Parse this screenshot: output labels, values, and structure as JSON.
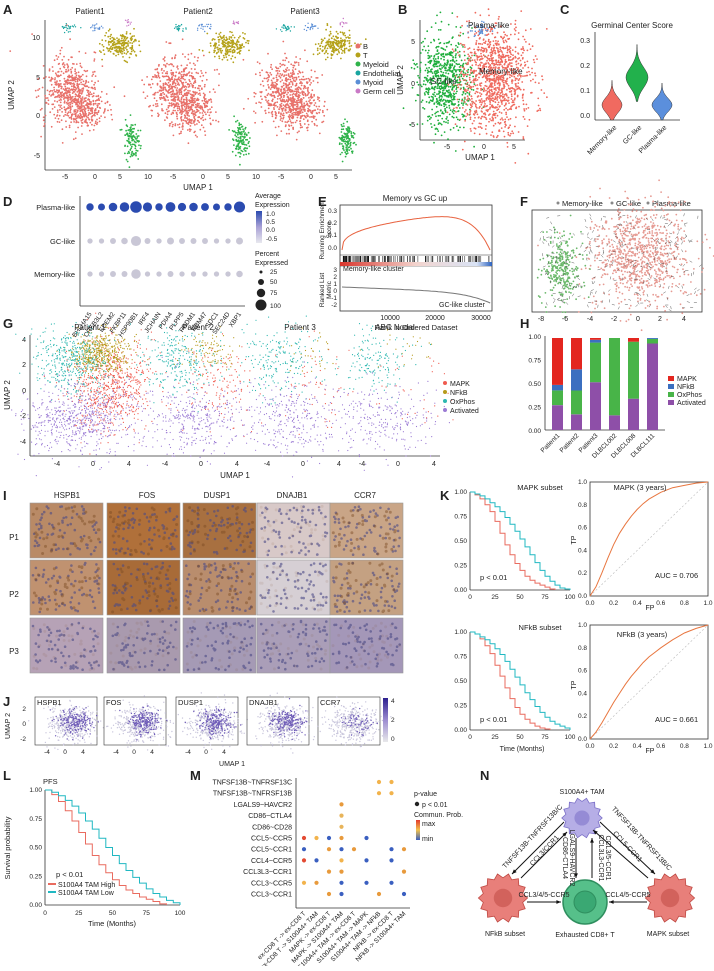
{
  "panels": {
    "A": {
      "label": "A",
      "titles": [
        "Patient1",
        "Patient2",
        "Patient3"
      ],
      "xlabel": "UMAP 1",
      "ylabel": "UMAP 2",
      "xticks": [
        "-5",
        "0",
        "5",
        "10"
      ],
      "yticks": [
        "10",
        "5",
        "0",
        "-5"
      ],
      "legend": [
        "B",
        "T",
        "Myeloid",
        "Endothelial",
        "Myoid",
        "Germ cell"
      ],
      "colors": [
        "#e8716a",
        "#b5a21a",
        "#2fb34a",
        "#19a5a0",
        "#5a8ed6",
        "#c979c6"
      ]
    },
    "B": {
      "label": "B",
      "xlabel": "UMAP 1",
      "ylabel": "UMAP 2",
      "xticks": [
        "-5",
        "0",
        "5"
      ],
      "yticks": [
        "5",
        "0",
        "-5"
      ],
      "clusters": [
        "Plasma-like",
        "GC-like",
        "Memory-like"
      ]
    },
    "C": {
      "label": "C",
      "title": "Germinal Center Score",
      "yticks": [
        "0.3",
        "0.2",
        "0.1",
        "0.0"
      ],
      "categories": [
        "Memory-like",
        "GC-like",
        "Plasma-like"
      ],
      "colors": [
        "#f06a60",
        "#22b14c",
        "#5b8fdc"
      ]
    },
    "D": {
      "label": "D",
      "rows": [
        "Plasma-like",
        "GC-like",
        "Memory-like"
      ],
      "genes": [
        "BHLHA15",
        "CREB3L2",
        "EDEM2",
        "FKBP11",
        "HSP90B1",
        "IRF4",
        "JCHAIN",
        "PDIA4",
        "PLPP5",
        "PRDM1",
        "RBM47",
        "SDC1",
        "SEC24D",
        "XBP1"
      ],
      "legend_title_avg": "Average\nExpression",
      "avg_ticks": [
        "1.0",
        "0.5",
        "0.0",
        "-0.5"
      ],
      "legend_title_pct": "Percent\nExpressed",
      "pct_ticks": [
        "25",
        "50",
        "75",
        "100"
      ]
    },
    "E": {
      "label": "E",
      "title": "Memory vs GC up",
      "ylabel_top": "Running Enrichment\nScore",
      "ylabel_bottom": "Ranked List\nMetric",
      "xlabel": "Rank in Ordered Dataset",
      "xticks": [
        "10000",
        "20000",
        "30000"
      ],
      "yticks_top": [
        "0.3",
        "0.2",
        "0.1",
        "0.0"
      ],
      "yticks_bottom": [
        "3",
        "2",
        "1",
        "0",
        "-1",
        "-2"
      ],
      "annot_left": "Memory-like cluster",
      "annot_right": "GC-like cluster"
    },
    "F": {
      "label": "F",
      "legend": [
        "Memory-like",
        "GC-like",
        "Plasma-like"
      ],
      "xticks": [
        "-8",
        "-6",
        "-4",
        "-2",
        "0",
        "2",
        "4"
      ]
    },
    "G": {
      "label": "G",
      "titles": [
        "Patient 1",
        "Patient 2",
        "Patient 3",
        "ABC Nodal"
      ],
      "xlabel": "UMAP 1",
      "ylabel": "UMAP 2",
      "xticks": [
        "-4",
        "0",
        "4"
      ],
      "yticks": [
        "4",
        "2",
        "0",
        "-2",
        "-4"
      ],
      "legend": [
        "MAPK",
        "NFkB",
        "OxPhos",
        "Activated"
      ],
      "colors": [
        "#ef5b4f",
        "#b79a1a",
        "#2cb7b0",
        "#9b7bd4"
      ]
    },
    "H": {
      "label": "H",
      "yticks": [
        "1.00",
        "0.75",
        "0.50",
        "0.25",
        "0.00"
      ],
      "legend": [
        "MAPK",
        "NFkB",
        "OxPhos",
        "Activated"
      ],
      "colors": [
        "#e3261f",
        "#3b6fc0",
        "#48b448",
        "#8e4fa8"
      ]
    },
    "I": {
      "label": "I",
      "genes": [
        "HSPB1",
        "FOS",
        "DUSP1",
        "DNAJB1",
        "CCR7"
      ],
      "rows": [
        "P1",
        "P2",
        "P3"
      ]
    },
    "J": {
      "label": "J",
      "genes": [
        "HSPB1",
        "FOS",
        "DUSP1",
        "DNAJB1",
        "CCR7"
      ],
      "xlabel": "UMAP 1",
      "ylabel": "UMAP 2",
      "xticks": [
        "-4",
        "0",
        "4"
      ],
      "yticks": [
        "2",
        "0",
        "-2"
      ],
      "colorbar_ticks": [
        "4",
        "2",
        "0"
      ]
    },
    "K": {
      "label": "K",
      "top_title": "MAPK subset",
      "bottom_title": "NFkB subset",
      "pval": "p < 0.01",
      "roc_top_title": "MAPK (3 years)",
      "roc_bottom_title": "NFkB (3 years)",
      "auc_top": "AUC = 0.706",
      "auc_bottom": "AUC = 0.661",
      "km_yticks": [
        "1.00",
        "0.75",
        "0.50",
        "0.25",
        "0.00"
      ],
      "km_xticks": [
        "0",
        "25",
        "50",
        "75",
        "100"
      ],
      "roc_ticks": [
        "0.0",
        "0.2",
        "0.4",
        "0.6",
        "0.8",
        "1.0"
      ],
      "xlabel_km": "Time (Months)",
      "xlabel_roc": "FP",
      "ylabel_roc": "TP"
    },
    "L": {
      "label": "L",
      "title": "PFS",
      "ylabel": "Survival probability",
      "xlabel": "Time (Months)",
      "pval": "p < 0.01",
      "yticks": [
        "1.00",
        "0.75",
        "0.50",
        "0.25",
        "0.00"
      ],
      "xticks": [
        "0",
        "25",
        "50",
        "75",
        "100"
      ],
      "legend": [
        "S100A4 TAM High",
        "S100A4 TAM Low"
      ],
      "colors": [
        "#e96b5f",
        "#20b8c2"
      ]
    },
    "M": {
      "label": "M",
      "pairs": [
        "TNFSF13B~TNFRSF13C",
        "TNFSF13B~TNFRSF13B",
        "LGALS9~HAVCR2",
        "CD86~CTLA4",
        "CD86~CD28",
        "CCL5~CCR5",
        "CCL5~CCR1",
        "CCL4~CCR5",
        "CCL3L3~CCR1",
        "CCL3~CCR5",
        "CCL3~CCR1"
      ],
      "sources": [
        "ex-CD8 T -> ex-CD8 T",
        "ex-CD8 T -> S100A4+ TAM",
        "MAPK -> ex-CD8 T",
        "MAPK -> S100A4+ TAM",
        "S100A4+ TAM -> ex-CD8 T",
        "S100A4+ TAM -> MAPK",
        "S100A4+ TAM -> NFkB",
        "NFkB -> ex-CD8 T",
        "NFkB -> S100A4+ TAM"
      ],
      "legend_pvalue": "p-value",
      "legend_p": "p < 0.01",
      "legend_prob": "Commun. Prob.",
      "legend_max": "max",
      "legend_min": "min"
    },
    "N": {
      "label": "N",
      "nodes": {
        "tam": "S100A4+ TAM",
        "nfkb": "NFkB subset",
        "cd8": "Exhausted CD8+ T",
        "mapk": "MAPK subset"
      },
      "edges": {
        "left_upper": "TNFSF13B-TNFRSF13B/C",
        "left_lower": "CCL3/CCR1",
        "mid_1": "CD86-CTLA4",
        "mid_2": "LGALS9-HAVCR2",
        "mid_3": "CCL3L3-CCR1",
        "mid_4": "CCL3/5-CCR1",
        "right_upper": "TNFSF13B-TNFRSF13B/C",
        "right_lower": "CCL5-CCR1",
        "bottom_left": "CCL3/4/5-CCR5",
        "bottom_right": "CCL4/5-CCR5"
      }
    }
  },
  "chart_data": [
    {
      "type": "violin",
      "panel": "C",
      "title": "Germinal Center Score",
      "categories": [
        "Memory-like",
        "GC-like",
        "Plasma-like"
      ],
      "values": [
        0.06,
        0.17,
        0.06
      ],
      "ylim": [
        0.0,
        0.35
      ]
    },
    {
      "type": "bar",
      "panel": "H",
      "stacked": true,
      "categories": [
        "Patient1",
        "Patient2",
        "Patient3",
        "DLBCL002",
        "DLBCL008",
        "DLBCL111"
      ],
      "series": [
        {
          "name": "Activated",
          "values": [
            0.27,
            0.17,
            0.52,
            0.16,
            0.34,
            0.94
          ]
        },
        {
          "name": "OxPhos",
          "values": [
            0.16,
            0.26,
            0.43,
            0.84,
            0.62,
            0.05
          ]
        },
        {
          "name": "NFkB",
          "values": [
            0.06,
            0.23,
            0.03,
            0.0,
            0.0,
            0.01
          ]
        },
        {
          "name": "MAPK",
          "values": [
            0.51,
            0.34,
            0.02,
            0.0,
            0.04,
            0.0
          ]
        }
      ],
      "ylim": [
        0,
        1.0
      ]
    },
    {
      "type": "dotplot",
      "panel": "D",
      "genes": [
        "BHLHA15",
        "CREB3L2",
        "EDEM2",
        "FKBP11",
        "HSP90B1",
        "IRF4",
        "JCHAIN",
        "PDIA4",
        "PLPP5",
        "PRDM1",
        "RBM47",
        "SDC1",
        "SEC24D",
        "XBP1"
      ],
      "rows": [
        "Plasma-like",
        "GC-like",
        "Memory-like"
      ],
      "pct": [
        [
          30,
          25,
          45,
          60,
          100,
          55,
          30,
          65,
          40,
          45,
          35,
          25,
          30,
          90
        ],
        [
          10,
          10,
          15,
          20,
          70,
          15,
          10,
          25,
          15,
          15,
          15,
          10,
          10,
          25
        ],
        [
          10,
          10,
          15,
          15,
          60,
          10,
          10,
          15,
          10,
          10,
          10,
          10,
          10,
          20
        ]
      ],
      "avg": [
        [
          1.0,
          1.0,
          1.0,
          1.0,
          1.0,
          1.0,
          1.0,
          1.0,
          1.0,
          1.0,
          1.0,
          1.0,
          1.0,
          1.0
        ],
        [
          -0.5,
          -0.5,
          -0.4,
          -0.5,
          -0.3,
          -0.5,
          -0.6,
          -0.4,
          -0.5,
          -0.5,
          -0.4,
          -0.6,
          -0.5,
          -0.5
        ],
        [
          -0.5,
          -0.5,
          -0.5,
          -0.5,
          -0.4,
          -0.6,
          -0.6,
          -0.5,
          -0.5,
          -0.5,
          -0.5,
          -0.6,
          -0.5,
          -0.5
        ]
      ]
    },
    {
      "type": "line",
      "panel": "K-top",
      "title": "MAPK subset",
      "xlabel": "",
      "series": [
        {
          "x": [
            0,
            5,
            10,
            15,
            20,
            25,
            30,
            35,
            40,
            45,
            50,
            55,
            60,
            65,
            70,
            75,
            80,
            85
          ],
          "y": [
            1.0,
            0.97,
            0.93,
            0.87,
            0.8,
            0.7,
            0.58,
            0.46,
            0.36,
            0.27,
            0.2,
            0.14,
            0.1,
            0.07,
            0.05,
            0.03,
            0.01,
            0.0
          ]
        },
        {
          "x": [
            0,
            5,
            10,
            15,
            20,
            25,
            30,
            35,
            40,
            45,
            50,
            55,
            60,
            65,
            70,
            75,
            80,
            85,
            90,
            95,
            100
          ],
          "y": [
            1.0,
            0.98,
            0.96,
            0.93,
            0.89,
            0.85,
            0.8,
            0.74,
            0.67,
            0.6,
            0.52,
            0.44,
            0.36,
            0.28,
            0.2,
            0.14,
            0.09,
            0.05,
            0.02,
            0.01,
            0.0
          ]
        }
      ],
      "ylim": [
        0,
        1.0
      ],
      "xlim": [
        0,
        100
      ]
    },
    {
      "type": "line",
      "panel": "K-bottom",
      "title": "NFkB subset",
      "xlabel": "Time (Months)",
      "series": [
        {
          "x": [
            0,
            5,
            10,
            15,
            20,
            25,
            30,
            35,
            40,
            45,
            50,
            55,
            60,
            65,
            70,
            75,
            80
          ],
          "y": [
            1.0,
            0.98,
            0.93,
            0.86,
            0.78,
            0.66,
            0.55,
            0.43,
            0.32,
            0.23,
            0.16,
            0.11,
            0.07,
            0.04,
            0.02,
            0.01,
            0.0
          ]
        },
        {
          "x": [
            0,
            5,
            10,
            15,
            20,
            25,
            30,
            35,
            40,
            45,
            50,
            55,
            60,
            65,
            70,
            75,
            80,
            85,
            90,
            95,
            100
          ],
          "y": [
            1.0,
            0.98,
            0.95,
            0.92,
            0.88,
            0.83,
            0.77,
            0.7,
            0.62,
            0.54,
            0.46,
            0.38,
            0.31,
            0.24,
            0.18,
            0.13,
            0.09,
            0.06,
            0.04,
            0.02,
            0.0
          ]
        }
      ],
      "ylim": [
        0,
        1.0
      ],
      "xlim": [
        0,
        100
      ]
    },
    {
      "type": "line",
      "panel": "K-roc-top",
      "title": "MAPK (3 years)",
      "xlabel": "FP",
      "ylabel": "TP",
      "series": [
        {
          "x": [
            0,
            0.05,
            0.1,
            0.15,
            0.2,
            0.25,
            0.3,
            0.35,
            0.4,
            0.45,
            0.5,
            0.55,
            0.6,
            0.7,
            0.8,
            0.9,
            1.0
          ],
          "y": [
            0,
            0.08,
            0.2,
            0.33,
            0.45,
            0.55,
            0.63,
            0.7,
            0.76,
            0.81,
            0.85,
            0.88,
            0.91,
            0.95,
            0.97,
            0.99,
            1.0
          ]
        }
      ],
      "xlim": [
        0,
        1.0
      ],
      "ylim": [
        0,
        1.0
      ]
    },
    {
      "type": "line",
      "panel": "K-roc-bottom",
      "title": "NFkB (3 years)",
      "xlabel": "FP",
      "ylabel": "TP",
      "series": [
        {
          "x": [
            0,
            0.05,
            0.1,
            0.15,
            0.2,
            0.25,
            0.3,
            0.35,
            0.4,
            0.45,
            0.5,
            0.55,
            0.6,
            0.7,
            0.8,
            0.9,
            1.0
          ],
          "y": [
            0,
            0.06,
            0.14,
            0.23,
            0.32,
            0.4,
            0.48,
            0.55,
            0.61,
            0.67,
            0.72,
            0.76,
            0.8,
            0.87,
            0.93,
            0.97,
            1.0
          ]
        }
      ],
      "xlim": [
        0,
        1.0
      ],
      "ylim": [
        0,
        1.0
      ]
    },
    {
      "type": "line",
      "panel": "L",
      "title": "PFS",
      "xlabel": "Time (Months)",
      "ylabel": "Survival probability",
      "series": [
        {
          "name": "S100A4 TAM High",
          "x": [
            0,
            5,
            10,
            15,
            20,
            25,
            30,
            35,
            40,
            45,
            50,
            55,
            60,
            65,
            70,
            75,
            80,
            85,
            90
          ],
          "y": [
            1.0,
            0.96,
            0.9,
            0.82,
            0.73,
            0.63,
            0.53,
            0.43,
            0.35,
            0.28,
            0.22,
            0.17,
            0.13,
            0.1,
            0.07,
            0.05,
            0.03,
            0.01,
            0.0
          ]
        },
        {
          "name": "S100A4 TAM Low",
          "x": [
            0,
            5,
            10,
            15,
            20,
            25,
            30,
            35,
            40,
            45,
            50,
            55,
            60,
            65,
            70,
            75,
            80,
            85,
            90,
            95,
            100
          ],
          "y": [
            1.0,
            0.98,
            0.95,
            0.91,
            0.86,
            0.8,
            0.73,
            0.66,
            0.58,
            0.5,
            0.43,
            0.36,
            0.3,
            0.24,
            0.19,
            0.14,
            0.1,
            0.07,
            0.04,
            0.02,
            0.0
          ]
        }
      ],
      "ylim": [
        0,
        1.0
      ],
      "xlim": [
        0,
        100
      ]
    }
  ]
}
